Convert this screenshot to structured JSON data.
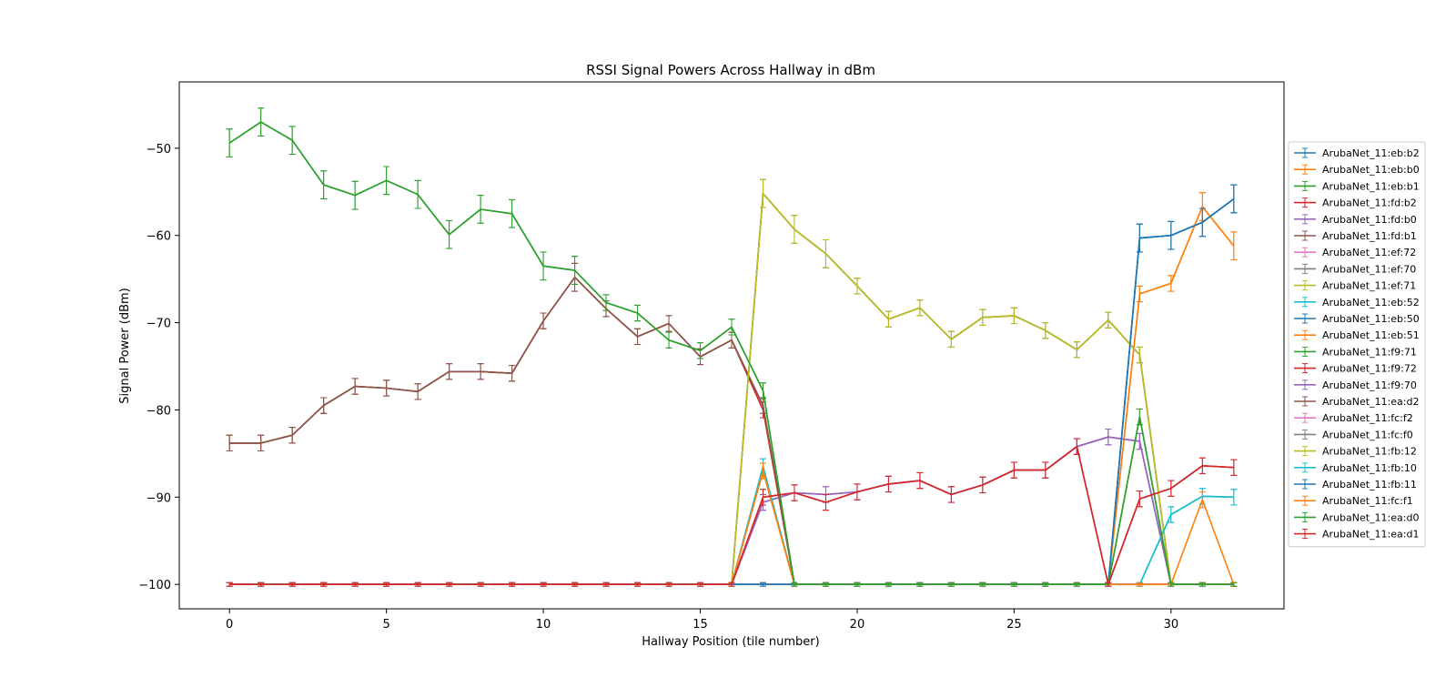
{
  "chart_data": {
    "type": "line",
    "title": "RSSI Signal Powers Across Hallway in dBm",
    "xlabel": "Hallway Position (tile number)",
    "ylabel": "Signal Power (dBm)",
    "xlim": [
      -1.6,
      33.6
    ],
    "ylim": [
      -102.8,
      -42.4
    ],
    "xticks": [
      0,
      5,
      10,
      15,
      20,
      25,
      30
    ],
    "yticks": [
      -100,
      -90,
      -80,
      -70,
      -60,
      -50
    ],
    "grid": false,
    "legend_position": "right",
    "x": [
      0,
      1,
      2,
      3,
      4,
      5,
      6,
      7,
      8,
      9,
      10,
      11,
      12,
      13,
      14,
      15,
      16,
      17,
      18,
      19,
      20,
      21,
      22,
      23,
      24,
      25,
      26,
      27,
      28,
      29,
      30,
      31,
      32
    ],
    "series": [
      {
        "name": "ArubaNet_11:eb:b2",
        "color": "#1f77b4",
        "values": [
          -100,
          -100,
          -100,
          -100,
          -100,
          -100,
          -100,
          -100,
          -100,
          -100,
          -100,
          -100,
          -100,
          -100,
          -100,
          -100,
          -100,
          -100,
          -100,
          -100,
          -100,
          -100,
          -100,
          -100,
          -100,
          -100,
          -100,
          -100,
          -100,
          -60.3,
          -60,
          -58.5,
          -55.8
        ]
      },
      {
        "name": "ArubaNet_11:eb:b0",
        "color": "#ff7f0e",
        "values": [
          -100,
          -100,
          -100,
          -100,
          -100,
          -100,
          -100,
          -100,
          -100,
          -100,
          -100,
          -100,
          -100,
          -100,
          -100,
          -100,
          -100,
          -100,
          -100,
          -100,
          -100,
          -100,
          -100,
          -100,
          -100,
          -100,
          -100,
          -100,
          -100,
          -66.7,
          -65.5,
          -56.7,
          -61.2
        ]
      },
      {
        "name": "ArubaNet_11:eb:b1",
        "color": "#2ca02c",
        "values": [
          -100,
          -100,
          -100,
          -100,
          -100,
          -100,
          -100,
          -100,
          -100,
          -100,
          -100,
          -100,
          -100,
          -100,
          -100,
          -100,
          -100,
          -100,
          -100,
          -100,
          -100,
          -100,
          -100,
          -100,
          -100,
          -100,
          -100,
          -100,
          -100,
          -100,
          -100,
          -100,
          -100
        ]
      },
      {
        "name": "ArubaNet_11:fd:b2",
        "color": "#d62728",
        "values": [
          -83.8,
          -83.8,
          -82.9,
          -79.5,
          -77.3,
          -77.5,
          -77.9,
          -75.6,
          -75.6,
          -75.8,
          -69.8,
          -64.8,
          -68.4,
          -71.6,
          -70.1,
          -73.9,
          -72,
          -80,
          -100,
          -100,
          -100,
          -100,
          -100,
          -100,
          -100,
          -100,
          -100,
          -100,
          -100,
          -100,
          -100,
          -100,
          -100
        ]
      },
      {
        "name": "ArubaNet_11:fd:b0",
        "color": "#9467bd",
        "values": [
          -100,
          -100,
          -100,
          -100,
          -100,
          -100,
          -100,
          -100,
          -100,
          -100,
          -100,
          -100,
          -100,
          -100,
          -100,
          -100,
          -100,
          -90.6,
          -89.5,
          -89.7,
          -89.4,
          -88.5,
          -88.1,
          -89.7,
          -88.6,
          -86.9,
          -86.9,
          -84.2,
          -83.1,
          -83.6,
          -100,
          -100,
          -100
        ]
      },
      {
        "name": "ArubaNet_11:fd:b1",
        "color": "#8c564b",
        "values": [
          -83.8,
          -83.8,
          -82.9,
          -79.5,
          -77.3,
          -77.5,
          -77.9,
          -75.6,
          -75.6,
          -75.8,
          -69.8,
          -64.8,
          -68.4,
          -71.6,
          -70.1,
          -73.9,
          -72,
          -79.5,
          -100,
          -100,
          -100,
          -100,
          -100,
          -100,
          -100,
          -100,
          -100,
          -100,
          -100,
          -100,
          -100,
          -100,
          -100
        ]
      },
      {
        "name": "ArubaNet_11:ef:72",
        "color": "#e377c2",
        "values": [
          -100,
          -100,
          -100,
          -100,
          -100,
          -100,
          -100,
          -100,
          -100,
          -100,
          -100,
          -100,
          -100,
          -100,
          -100,
          -100,
          -100,
          -90.6,
          -89.5,
          -89.7,
          -89.4,
          -88.5,
          -88.1,
          -89.7,
          -88.6,
          -86.9,
          -86.9,
          -84.2,
          -83.1,
          -83.6,
          -100,
          -100,
          -100
        ]
      },
      {
        "name": "ArubaNet_11:ef:70",
        "color": "#7f7f7f",
        "values": [
          -100,
          -100,
          -100,
          -100,
          -100,
          -100,
          -100,
          -100,
          -100,
          -100,
          -100,
          -100,
          -100,
          -100,
          -100,
          -100,
          -100,
          -55.2,
          -59.3,
          -62.1,
          -65.8,
          -69.6,
          -68.3,
          -71.9,
          -69.4,
          -69.2,
          -70.9,
          -73.1,
          -69.7,
          -73.7,
          -100,
          -100,
          -100
        ]
      },
      {
        "name": "ArubaNet_11:ef:71",
        "color": "#bcbd22",
        "values": [
          -100,
          -100,
          -100,
          -100,
          -100,
          -100,
          -100,
          -100,
          -100,
          -100,
          -100,
          -100,
          -100,
          -100,
          -100,
          -100,
          -100,
          -55.2,
          -59.3,
          -62.1,
          -65.8,
          -69.6,
          -68.3,
          -71.9,
          -69.4,
          -69.2,
          -70.9,
          -73.1,
          -69.7,
          -73.7,
          -100,
          -100,
          -100
        ]
      },
      {
        "name": "ArubaNet_11:eb:52",
        "color": "#17becf",
        "values": [
          -100,
          -100,
          -100,
          -100,
          -100,
          -100,
          -100,
          -100,
          -100,
          -100,
          -100,
          -100,
          -100,
          -100,
          -100,
          -100,
          -100,
          -86.5,
          -100,
          -100,
          -100,
          -100,
          -100,
          -100,
          -100,
          -100,
          -100,
          -100,
          -100,
          -100,
          -92,
          -89.9,
          -90
        ]
      },
      {
        "name": "ArubaNet_11:eb:50",
        "color": "#1f77b4",
        "values": [
          -100,
          -100,
          -100,
          -100,
          -100,
          -100,
          -100,
          -100,
          -100,
          -100,
          -100,
          -100,
          -100,
          -100,
          -100,
          -100,
          -100,
          -100,
          -100,
          -100,
          -100,
          -100,
          -100,
          -100,
          -100,
          -100,
          -100,
          -100,
          -100,
          -60.3,
          -60,
          -58.5,
          -55.8
        ]
      },
      {
        "name": "ArubaNet_11:eb:51",
        "color": "#ff7f0e",
        "values": [
          -100,
          -100,
          -100,
          -100,
          -100,
          -100,
          -100,
          -100,
          -100,
          -100,
          -100,
          -100,
          -100,
          -100,
          -100,
          -100,
          -100,
          -87,
          -100,
          -100,
          -100,
          -100,
          -100,
          -100,
          -100,
          -100,
          -100,
          -100,
          -100,
          -66.7,
          -65.5,
          -56.7,
          -61.2
        ]
      },
      {
        "name": "ArubaNet_11:f9:71",
        "color": "#2ca02c",
        "values": [
          -49.4,
          -47,
          -49.1,
          -54.2,
          -55.4,
          -53.7,
          -55.3,
          -59.9,
          -57,
          -57.5,
          -63.5,
          -64,
          -67.7,
          -68.9,
          -72,
          -73.2,
          -70.5,
          -77.8,
          -100,
          -100,
          -100,
          -100,
          -100,
          -100,
          -100,
          -100,
          -100,
          -100,
          -100,
          -80.8,
          -100,
          -100,
          -100
        ]
      },
      {
        "name": "ArubaNet_11:f9:72",
        "color": "#d62728",
        "values": [
          -100,
          -100,
          -100,
          -100,
          -100,
          -100,
          -100,
          -100,
          -100,
          -100,
          -100,
          -100,
          -100,
          -100,
          -100,
          -100,
          -100,
          -90,
          -89.5,
          -90.6,
          -89.4,
          -88.5,
          -88.1,
          -89.7,
          -88.6,
          -86.9,
          -86.9,
          -84.2,
          -100,
          -90.2,
          -89,
          -86.4,
          -86.6
        ]
      },
      {
        "name": "ArubaNet_11:f9:70",
        "color": "#9467bd",
        "values": [
          -100,
          -100,
          -100,
          -100,
          -100,
          -100,
          -100,
          -100,
          -100,
          -100,
          -100,
          -100,
          -100,
          -100,
          -100,
          -100,
          -100,
          -90.6,
          -89.5,
          -89.7,
          -89.4,
          -88.5,
          -88.1,
          -89.7,
          -88.6,
          -86.9,
          -86.9,
          -84.2,
          -83.1,
          -83.6,
          -100,
          -100,
          -100
        ]
      },
      {
        "name": "ArubaNet_11:ea:d2",
        "color": "#8c564b",
        "values": [
          -83.8,
          -83.8,
          -82.9,
          -79.5,
          -77.3,
          -77.5,
          -77.9,
          -75.6,
          -75.6,
          -75.8,
          -69.8,
          -64.8,
          -68.4,
          -71.6,
          -70.1,
          -73.9,
          -72,
          -79.5,
          -100,
          -100,
          -100,
          -100,
          -100,
          -100,
          -100,
          -100,
          -100,
          -100,
          -100,
          -100,
          -100,
          -100,
          -100
        ]
      },
      {
        "name": "ArubaNet_11:fc:f2",
        "color": "#e377c2",
        "values": [
          -100,
          -100,
          -100,
          -100,
          -100,
          -100,
          -100,
          -100,
          -100,
          -100,
          -100,
          -100,
          -100,
          -100,
          -100,
          -100,
          -100,
          -100,
          -100,
          -100,
          -100,
          -100,
          -100,
          -100,
          -100,
          -100,
          -100,
          -100,
          -100,
          -100,
          -100,
          -100,
          -100
        ]
      },
      {
        "name": "ArubaNet_11:fc:f0",
        "color": "#7f7f7f",
        "values": [
          -100,
          -100,
          -100,
          -100,
          -100,
          -100,
          -100,
          -100,
          -100,
          -100,
          -100,
          -100,
          -100,
          -100,
          -100,
          -100,
          -100,
          -55.2,
          -59.3,
          -62.1,
          -65.8,
          -69.6,
          -68.3,
          -71.9,
          -69.4,
          -69.2,
          -70.9,
          -73.1,
          -69.7,
          -73.7,
          -100,
          -100,
          -100
        ]
      },
      {
        "name": "ArubaNet_11:fb:12",
        "color": "#bcbd22",
        "values": [
          -100,
          -100,
          -100,
          -100,
          -100,
          -100,
          -100,
          -100,
          -100,
          -100,
          -100,
          -100,
          -100,
          -100,
          -100,
          -100,
          -100,
          -55.2,
          -59.3,
          -62.1,
          -65.8,
          -69.6,
          -68.3,
          -71.9,
          -69.4,
          -69.2,
          -70.9,
          -73.1,
          -69.7,
          -73.7,
          -100,
          -100,
          -100
        ]
      },
      {
        "name": "ArubaNet_11:fb:10",
        "color": "#17becf",
        "values": [
          -100,
          -100,
          -100,
          -100,
          -100,
          -100,
          -100,
          -100,
          -100,
          -100,
          -100,
          -100,
          -100,
          -100,
          -100,
          -100,
          -100,
          -86.5,
          -100,
          -100,
          -100,
          -100,
          -100,
          -100,
          -100,
          -100,
          -100,
          -100,
          -100,
          -100,
          -92,
          -89.9,
          -90
        ]
      },
      {
        "name": "ArubaNet_11:fb:11",
        "color": "#1f77b4",
        "values": [
          -100,
          -100,
          -100,
          -100,
          -100,
          -100,
          -100,
          -100,
          -100,
          -100,
          -100,
          -100,
          -100,
          -100,
          -100,
          -100,
          -100,
          -100,
          -100,
          -100,
          -100,
          -100,
          -100,
          -100,
          -100,
          -100,
          -100,
          -100,
          -100,
          -60.3,
          -60,
          -58.5,
          -55.8
        ]
      },
      {
        "name": "ArubaNet_11:fc:f1",
        "color": "#ff7f0e",
        "values": [
          -100,
          -100,
          -100,
          -100,
          -100,
          -100,
          -100,
          -100,
          -100,
          -100,
          -100,
          -100,
          -100,
          -100,
          -100,
          -100,
          -100,
          -87,
          -100,
          -100,
          -100,
          -100,
          -100,
          -100,
          -100,
          -100,
          -100,
          -100,
          -100,
          -100,
          -100,
          -90.3,
          -100
        ]
      },
      {
        "name": "ArubaNet_11:ea:d0",
        "color": "#2ca02c",
        "values": [
          -49.4,
          -47,
          -49.1,
          -54.2,
          -55.4,
          -53.7,
          -55.3,
          -59.9,
          -57,
          -57.5,
          -63.5,
          -64,
          -67.7,
          -68.9,
          -72,
          -73.2,
          -70.5,
          -77.8,
          -100,
          -100,
          -100,
          -100,
          -100,
          -100,
          -100,
          -100,
          -100,
          -100,
          -100,
          -80.8,
          -100,
          -100,
          -100
        ]
      },
      {
        "name": "ArubaNet_11:ea:d1",
        "color": "#d62728",
        "values": [
          -100,
          -100,
          -100,
          -100,
          -100,
          -100,
          -100,
          -100,
          -100,
          -100,
          -100,
          -100,
          -100,
          -100,
          -100,
          -100,
          -100,
          -90,
          -89.5,
          -90.6,
          -89.4,
          -88.5,
          -88.1,
          -89.7,
          -88.6,
          -86.9,
          -86.9,
          -84.2,
          -100,
          -90.2,
          -89,
          -86.4,
          -86.6
        ]
      }
    ]
  }
}
